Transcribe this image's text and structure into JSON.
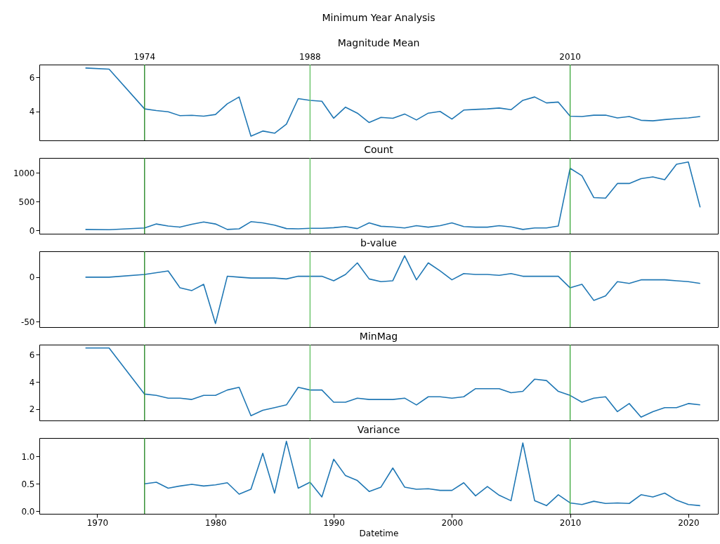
{
  "chart_data": [
    {
      "type": "line",
      "title": "Minimum Year Analysis",
      "subtitle": "Magnitude Mean",
      "x": [
        1969,
        1971,
        1974,
        1975,
        1976,
        1977,
        1978,
        1979,
        1980,
        1981,
        1982,
        1983,
        1984,
        1985,
        1986,
        1987,
        1988,
        1989,
        1990,
        1991,
        1992,
        1993,
        1994,
        1995,
        1996,
        1997,
        1998,
        1999,
        2000,
        2001,
        2002,
        2003,
        2004,
        2005,
        2006,
        2007,
        2008,
        2009,
        2010,
        2011,
        2012,
        2013,
        2014,
        2015,
        2016,
        2017,
        2018,
        2019,
        2020,
        2021
      ],
      "series": [
        {
          "color": "#1f77b4",
          "values": [
            6.55,
            6.48,
            4.15,
            4.05,
            3.98,
            3.75,
            3.77,
            3.72,
            3.82,
            4.45,
            4.85,
            2.55,
            2.85,
            2.72,
            3.25,
            4.75,
            4.65,
            4.6,
            3.6,
            4.25,
            3.9,
            3.35,
            3.65,
            3.6,
            3.85,
            3.5,
            3.9,
            4.0,
            3.55,
            4.08,
            4.12,
            4.15,
            4.2,
            4.1,
            4.65,
            4.85,
            4.5,
            4.55,
            3.72,
            3.7,
            3.78,
            3.78,
            3.62,
            3.7,
            3.48,
            3.45,
            3.52,
            3.58,
            3.62,
            3.7
          ]
        }
      ],
      "xlim": [
        1965.1,
        2022.5
      ],
      "ylim": [
        2.3,
        6.75
      ],
      "yticks": [
        4,
        6
      ],
      "tick_labels": "y",
      "grid": false,
      "ref_lines": [
        {
          "axis": "x",
          "value": 1974,
          "label": "1974",
          "color": "#2a8a2a"
        },
        {
          "axis": "x",
          "value": 1988,
          "label": "1988",
          "color": "#66c266"
        },
        {
          "axis": "x",
          "value": 2010,
          "label": "2010",
          "color": "#44aa44"
        }
      ]
    },
    {
      "type": "line",
      "title": "Count",
      "x": [
        1969,
        1971,
        1974,
        1975,
        1976,
        1977,
        1978,
        1979,
        1980,
        1981,
        1982,
        1983,
        1984,
        1985,
        1986,
        1987,
        1988,
        1989,
        1990,
        1991,
        1992,
        1993,
        1994,
        1995,
        1996,
        1997,
        1998,
        1999,
        2000,
        2001,
        2002,
        2003,
        2004,
        2005,
        2006,
        2007,
        2008,
        2009,
        2010,
        2011,
        2012,
        2013,
        2014,
        2015,
        2016,
        2017,
        2018,
        2019,
        2020,
        2021
      ],
      "series": [
        {
          "color": "#1f77b4",
          "values": [
            15,
            10,
            40,
            110,
            75,
            55,
            105,
            145,
            110,
            15,
            25,
            150,
            130,
            90,
            30,
            25,
            35,
            35,
            45,
            65,
            30,
            130,
            70,
            60,
            40,
            80,
            55,
            80,
            130,
            65,
            55,
            55,
            80,
            60,
            15,
            40,
            40,
            75,
            1080,
            950,
            570,
            560,
            815,
            815,
            900,
            930,
            880,
            1150,
            1190,
            400
          ]
        }
      ],
      "xlim": [
        1965.1,
        2022.5
      ],
      "ylim": [
        -60,
        1260
      ],
      "yticks": [
        0,
        500,
        1000
      ],
      "tick_labels": "y",
      "grid": false,
      "ref_lines": [
        {
          "axis": "x",
          "value": 1974,
          "label": null,
          "color": "#2a8a2a"
        },
        {
          "axis": "x",
          "value": 1988,
          "label": null,
          "color": "#66c266"
        },
        {
          "axis": "x",
          "value": 2010,
          "label": null,
          "color": "#44aa44"
        }
      ]
    },
    {
      "type": "line",
      "title": "b-value",
      "x": [
        1969,
        1971,
        1974,
        1975,
        1976,
        1977,
        1978,
        1979,
        1980,
        1981,
        1982,
        1983,
        1984,
        1985,
        1986,
        1987,
        1988,
        1989,
        1990,
        1991,
        1992,
        1993,
        1994,
        1995,
        1996,
        1997,
        1998,
        1999,
        2000,
        2001,
        2002,
        2003,
        2004,
        2005,
        2006,
        2007,
        2008,
        2009,
        2010,
        2011,
        2012,
        2013,
        2014,
        2015,
        2016,
        2017,
        2018,
        2019,
        2020,
        2021
      ],
      "series": [
        {
          "color": "#1f77b4",
          "values": [
            0,
            0,
            3,
            5,
            7,
            -12,
            -15,
            -8,
            -52,
            1,
            0,
            -1,
            -1,
            -1,
            -2,
            1,
            1,
            1,
            -4,
            3,
            16,
            -2,
            -5,
            -4,
            24,
            -3,
            16,
            7,
            -3,
            4,
            3,
            3,
            2,
            4,
            1,
            1,
            1,
            1,
            -12,
            -8,
            -26,
            -21,
            -5,
            -7,
            -3,
            -3,
            -3,
            -4,
            -5,
            -7
          ]
        }
      ],
      "xlim": [
        1965.1,
        2022.5
      ],
      "ylim": [
        -56,
        29
      ],
      "yticks": [
        -50,
        0
      ],
      "tick_labels": "y",
      "grid": false,
      "ref_lines": [
        {
          "axis": "x",
          "value": 1974,
          "label": null,
          "color": "#2a8a2a"
        },
        {
          "axis": "x",
          "value": 1988,
          "label": null,
          "color": "#66c266"
        },
        {
          "axis": "x",
          "value": 2010,
          "label": null,
          "color": "#44aa44"
        }
      ]
    },
    {
      "type": "line",
      "title": "MinMag",
      "x": [
        1969,
        1971,
        1974,
        1975,
        1976,
        1977,
        1978,
        1979,
        1980,
        1981,
        1982,
        1983,
        1984,
        1985,
        1986,
        1987,
        1988,
        1989,
        1990,
        1991,
        1992,
        1993,
        1994,
        1995,
        1996,
        1997,
        1998,
        1999,
        2000,
        2001,
        2002,
        2003,
        2004,
        2005,
        2006,
        2007,
        2008,
        2009,
        2010,
        2011,
        2012,
        2013,
        2014,
        2015,
        2016,
        2017,
        2018,
        2019,
        2020,
        2021
      ],
      "series": [
        {
          "color": "#1f77b4",
          "values": [
            6.5,
            6.5,
            3.1,
            3.0,
            2.8,
            2.8,
            2.7,
            3.0,
            3.0,
            3.4,
            3.6,
            1.5,
            1.9,
            2.1,
            2.3,
            3.6,
            3.4,
            3.4,
            2.5,
            2.5,
            2.8,
            2.7,
            2.7,
            2.7,
            2.8,
            2.3,
            2.9,
            2.9,
            2.8,
            2.9,
            3.5,
            3.5,
            3.5,
            3.2,
            3.3,
            4.2,
            4.1,
            3.3,
            3.0,
            2.5,
            2.8,
            2.9,
            1.8,
            2.4,
            1.4,
            1.8,
            2.1,
            2.1,
            2.4,
            2.3
          ]
        }
      ],
      "xlim": [
        1965.1,
        2022.5
      ],
      "ylim": [
        1.15,
        6.75
      ],
      "yticks": [
        2,
        4,
        6
      ],
      "tick_labels": "y",
      "grid": false,
      "ref_lines": [
        {
          "axis": "x",
          "value": 1974,
          "label": null,
          "color": "#2a8a2a"
        },
        {
          "axis": "x",
          "value": 1988,
          "label": null,
          "color": "#66c266"
        },
        {
          "axis": "x",
          "value": 2010,
          "label": null,
          "color": "#44aa44"
        }
      ]
    },
    {
      "type": "line",
      "title": "Variance",
      "xlabel": "Datetime",
      "series": [
        {
          "color": "#1f77b4",
          "x": [
            1974,
            1975,
            1976,
            1977,
            1978,
            1979,
            1980,
            1981,
            1982,
            1983,
            1984,
            1985,
            1986,
            1987,
            1988,
            1989,
            1990,
            1991,
            1992,
            1993,
            1994,
            1995,
            1996,
            1997,
            1998,
            1999,
            2000,
            2001,
            2002,
            2003,
            2004,
            2005,
            2006,
            2007,
            2008,
            2009,
            2010,
            2011,
            2012,
            2013,
            2014,
            2015,
            2016,
            2017,
            2018,
            2019,
            2020,
            2021
          ],
          "values": [
            0.5,
            0.53,
            0.42,
            0.46,
            0.49,
            0.46,
            0.48,
            0.52,
            0.31,
            0.4,
            1.06,
            0.33,
            1.28,
            0.42,
            0.53,
            0.26,
            0.95,
            0.65,
            0.56,
            0.36,
            0.44,
            0.79,
            0.44,
            0.4,
            0.41,
            0.38,
            0.38,
            0.52,
            0.28,
            0.45,
            0.29,
            0.19,
            1.25,
            0.19,
            0.1,
            0.3,
            0.15,
            0.12,
            0.18,
            0.14,
            0.15,
            0.14,
            0.3,
            0.26,
            0.33,
            0.2,
            0.12,
            0.1
          ]
        }
      ],
      "xlim": [
        1965.1,
        2022.5
      ],
      "xticks": [
        1970,
        1980,
        1990,
        2000,
        2010,
        2020
      ],
      "ylim": [
        -0.05,
        1.34
      ],
      "yticks": [
        {
          "value": 0,
          "label": "0.0"
        },
        {
          "value": 0.5,
          "label": "0.5"
        },
        {
          "value": 1,
          "label": "1.0"
        }
      ],
      "grid": false,
      "ref_lines": [
        {
          "axis": "x",
          "value": 1974,
          "label": null,
          "color": "#2a8a2a"
        },
        {
          "axis": "x",
          "value": 1988,
          "label": null,
          "color": "#66c266"
        },
        {
          "axis": "x",
          "value": 2010,
          "label": null,
          "color": "#44aa44"
        }
      ]
    }
  ]
}
